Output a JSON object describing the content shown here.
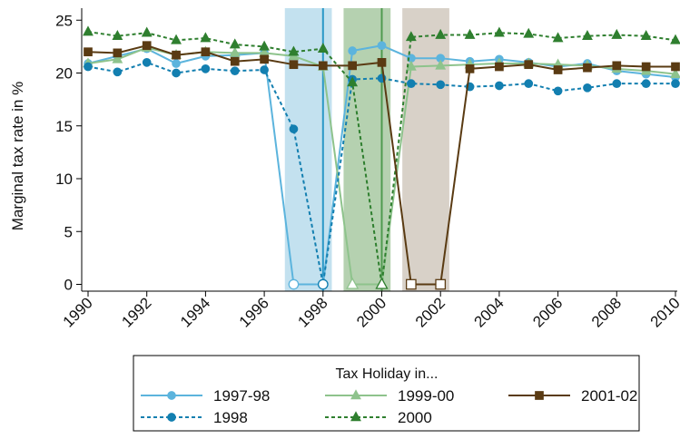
{
  "chart_data": {
    "type": "line",
    "title": "",
    "xlabel": "",
    "ylabel": "Marginal tax rate in %",
    "xlim": [
      1990,
      2010
    ],
    "ylim": [
      -1,
      26
    ],
    "x_ticks": [
      1990,
      1992,
      1994,
      1996,
      1998,
      2000,
      2002,
      2004,
      2006,
      2008,
      2010
    ],
    "y_ticks": [
      0,
      5,
      10,
      15,
      20,
      25
    ],
    "grid": false,
    "shaded_periods": [
      {
        "label": "1997-98",
        "x_start": 1996.7,
        "x_end": 1998.3,
        "color": "#c3e1ef"
      },
      {
        "label": "1999-00",
        "x_start": 1998.7,
        "x_end": 2000.3,
        "color": "#b5d1b0"
      },
      {
        "label": "2001-02",
        "x_start": 2000.7,
        "x_end": 2002.3,
        "color": "#d8d1c8"
      }
    ],
    "vertical_lines": [
      {
        "x": 1998,
        "color": "#2a98c7"
      },
      {
        "x": 2000,
        "color": "#4f9a4f"
      }
    ],
    "x": [
      1990,
      1991,
      1992,
      1993,
      1994,
      1995,
      1996,
      1997,
      1998,
      1999,
      2000,
      2001,
      2002,
      2003,
      2004,
      2005,
      2006,
      2007,
      2008,
      2009,
      2010
    ],
    "series": [
      {
        "name": "1997-98",
        "color": "#5cb4dd",
        "dash": "solid",
        "marker": "circle",
        "values": [
          20.9,
          21.6,
          22.3,
          20.9,
          21.6,
          21.7,
          21.9,
          0,
          0,
          22.1,
          22.6,
          21.4,
          21.4,
          21.1,
          21.3,
          21.0,
          20.6,
          20.9,
          20.2,
          19.9,
          19.6
        ],
        "hollow_indices": [
          7,
          8
        ]
      },
      {
        "name": "1999-00",
        "color": "#8ec38c",
        "dash": "solid",
        "marker": "triangle",
        "values": [
          20.9,
          21.3,
          22.4,
          21.7,
          22.0,
          21.9,
          21.9,
          21.6,
          20.6,
          0,
          0,
          20.6,
          20.7,
          20.8,
          20.9,
          20.9,
          20.8,
          20.7,
          20.4,
          20.2,
          19.9
        ],
        "hollow_indices": [
          9,
          10
        ]
      },
      {
        "name": "2001-02",
        "color": "#5a3b13",
        "dash": "solid",
        "marker": "square",
        "values": [
          22.0,
          21.9,
          22.6,
          21.7,
          22.0,
          21.1,
          21.3,
          20.8,
          20.7,
          20.7,
          21.0,
          0,
          0,
          20.4,
          20.6,
          20.8,
          20.3,
          20.5,
          20.7,
          20.6,
          20.6
        ],
        "hollow_indices": [
          11,
          12
        ]
      },
      {
        "name": "1998",
        "color": "#137fb0",
        "dash": "dash",
        "marker": "circle",
        "values": [
          20.6,
          20.1,
          21.0,
          20.0,
          20.4,
          20.2,
          20.3,
          14.7,
          0,
          19.4,
          19.5,
          19.0,
          18.9,
          18.7,
          18.8,
          19.0,
          18.3,
          18.6,
          19.0,
          19.0,
          19.0
        ],
        "hollow_indices": [
          8
        ]
      },
      {
        "name": "2000",
        "color": "#2f7f2f",
        "dash": "dash",
        "marker": "triangle",
        "values": [
          23.9,
          23.5,
          23.8,
          23.1,
          23.3,
          22.7,
          22.5,
          22.0,
          22.3,
          19.1,
          0,
          23.4,
          23.6,
          23.6,
          23.8,
          23.7,
          23.3,
          23.5,
          23.6,
          23.5,
          23.1
        ],
        "hollow_indices": [
          10
        ]
      }
    ],
    "legend": {
      "title": "Tax Holiday in...",
      "placement": "bottom",
      "rows": [
        [
          "1997-98",
          "1999-00",
          "2001-02"
        ],
        [
          "1998",
          "2000"
        ]
      ]
    }
  }
}
